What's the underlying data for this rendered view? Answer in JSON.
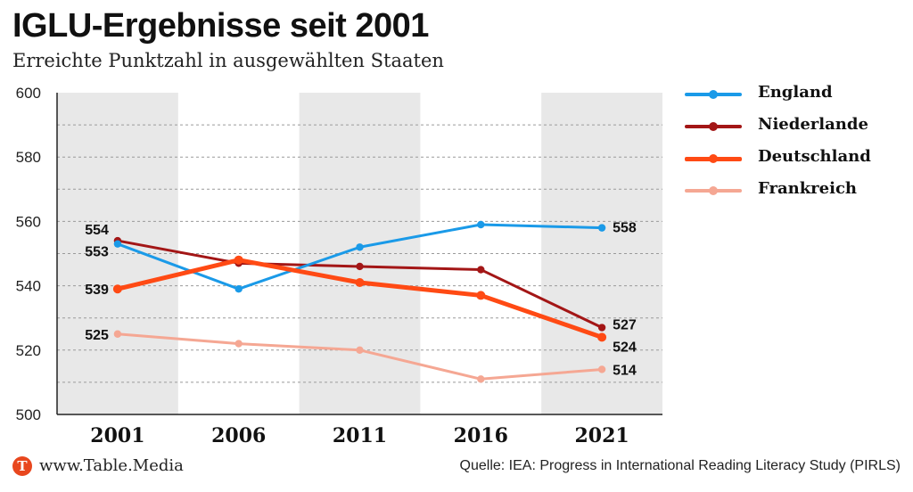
{
  "title": "IGLU-Ergebnisse seit 2001",
  "subtitle": "Erreichte Punktzahl in ausgewählten Staaten",
  "footer": {
    "logo_letter": "T",
    "site": "www.Table.Media",
    "source": "Quelle: IEA: Progress in International Reading Literacy Study (PIRLS)"
  },
  "chart_data": {
    "type": "line",
    "title": "IGLU-Ergebnisse seit 2001",
    "subtitle": "Erreichte Punktzahl in ausgewählten Staaten",
    "categories": [
      "2001",
      "2006",
      "2011",
      "2016",
      "2021"
    ],
    "ylim": [
      500,
      600
    ],
    "yticks": [
      500,
      520,
      540,
      560,
      580,
      600
    ],
    "grid": true,
    "legend_position": "right",
    "column_shading": "alternating",
    "series": [
      {
        "name": "England",
        "color": "#1a9ae8",
        "width": 3,
        "values": [
          553,
          539,
          552,
          559,
          558
        ],
        "labels": [
          "553",
          "",
          "",
          "",
          "558"
        ]
      },
      {
        "name": "Niederlande",
        "color": "#a31616",
        "width": 3,
        "values": [
          554,
          547,
          546,
          545,
          527
        ],
        "labels": [
          "554",
          "",
          "",
          "",
          "527"
        ]
      },
      {
        "name": "Deutschland",
        "color": "#ff4a14",
        "width": 5,
        "values": [
          539,
          548,
          541,
          537,
          524
        ],
        "labels": [
          "539",
          "",
          "",
          "",
          "524"
        ]
      },
      {
        "name": "Frankreich",
        "color": "#f5a793",
        "width": 3,
        "values": [
          525,
          522,
          520,
          511,
          514
        ],
        "labels": [
          "525",
          "",
          "",
          "",
          "514"
        ]
      }
    ]
  }
}
